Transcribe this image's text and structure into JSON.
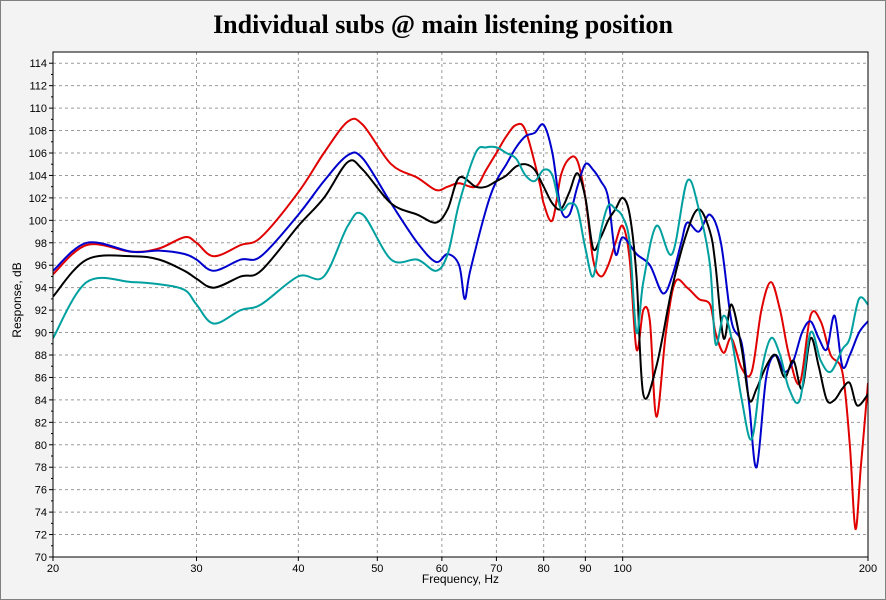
{
  "chart_data": {
    "type": "line",
    "title": "Individual subs @ main listening position",
    "xlabel": "Frequency, Hz",
    "ylabel": "Response, dB",
    "x_scale": "log",
    "xlim": [
      20,
      200
    ],
    "ylim": [
      70,
      115
    ],
    "x_ticks": [
      20,
      30,
      40,
      50,
      60,
      70,
      80,
      90,
      100,
      200
    ],
    "y_ticks": [
      70,
      72,
      74,
      76,
      78,
      80,
      82,
      84,
      86,
      88,
      90,
      92,
      94,
      96,
      98,
      100,
      102,
      104,
      106,
      108,
      110,
      112,
      114
    ],
    "grid": true,
    "legend": "none",
    "series": [
      {
        "color": "#e00000",
        "x": [
          20,
          22,
          25,
          27,
          29,
          30,
          31.5,
          34,
          36,
          40,
          43,
          46,
          48,
          52,
          56,
          59,
          61,
          63,
          66,
          68,
          70,
          72,
          74,
          76,
          79,
          80,
          82,
          84,
          86,
          88,
          90,
          92,
          94,
          96,
          98,
          100,
          102,
          104,
          106,
          108,
          110,
          113,
          116,
          120,
          124,
          128,
          130,
          133,
          136,
          140,
          144,
          148,
          152,
          156,
          160,
          165,
          170,
          175,
          180,
          186,
          190,
          193,
          196,
          200
        ],
        "y": [
          95.2,
          97.8,
          97.2,
          97.5,
          98.5,
          98.0,
          96.8,
          97.8,
          98.5,
          102.5,
          106.0,
          108.8,
          108.5,
          105.0,
          103.8,
          102.7,
          103.0,
          103.3,
          103.0,
          104.5,
          106.0,
          107.5,
          108.5,
          108.0,
          103.5,
          101.5,
          100.0,
          104.0,
          105.5,
          105.3,
          102.0,
          96.5,
          95.0,
          96.0,
          98.0,
          99.5,
          96.5,
          88.5,
          92.0,
          91.0,
          82.5,
          90.0,
          94.5,
          94.0,
          93.0,
          92.5,
          90.0,
          88.2,
          89.5,
          86.8,
          86.5,
          92.0,
          94.5,
          92.0,
          88.0,
          85.5,
          91.5,
          91.0,
          88.0,
          86.5,
          80.0,
          72.5,
          78.0,
          85.5
        ]
      },
      {
        "color": "#0000cc",
        "x": [
          20,
          22,
          25,
          27,
          29,
          30,
          31.5,
          34,
          36,
          40,
          43,
          46,
          48,
          52,
          56,
          59,
          61,
          63,
          64,
          65,
          68,
          70,
          72,
          74,
          76,
          78,
          80,
          82,
          84,
          86,
          88,
          90,
          92,
          94,
          96,
          98,
          100,
          104,
          108,
          112,
          115,
          118,
          120,
          124,
          128,
          132,
          136,
          140,
          143,
          146,
          150,
          154,
          158,
          162,
          166,
          170,
          174,
          178,
          182,
          186,
          190,
          195,
          200
        ],
        "y": [
          95.5,
          98.0,
          97.2,
          97.3,
          97.0,
          96.5,
          95.5,
          96.5,
          96.8,
          100.5,
          103.5,
          105.8,
          105.5,
          101.5,
          98.0,
          96.3,
          97.0,
          96.0,
          93.0,
          95.5,
          101.0,
          103.5,
          105.0,
          106.5,
          107.5,
          107.8,
          108.5,
          106.0,
          101.0,
          100.5,
          103.0,
          105.0,
          104.5,
          103.5,
          102.0,
          97.0,
          98.5,
          97.0,
          96.0,
          93.5,
          95.0,
          98.0,
          99.8,
          99.0,
          100.5,
          98.0,
          91.0,
          89.0,
          83.5,
          78.0,
          86.0,
          88.0,
          86.5,
          87.5,
          90.0,
          91.0,
          89.5,
          88.5,
          91.5,
          87.0,
          88.0,
          90.0,
          91.0
        ]
      },
      {
        "color": "#000000",
        "x": [
          20,
          22,
          25,
          27,
          29,
          30,
          31.5,
          34,
          36,
          40,
          43,
          46,
          48,
          52,
          56,
          59,
          61,
          63,
          66,
          68,
          70,
          72,
          74,
          76,
          78,
          80,
          82,
          84,
          86,
          88,
          90,
          92,
          94,
          96,
          98,
          100,
          102,
          104,
          106,
          110,
          115,
          120,
          124,
          128,
          130,
          133,
          136,
          140,
          143,
          146,
          150,
          154,
          158,
          162,
          166,
          170,
          174,
          178,
          182,
          186,
          190,
          194,
          200
        ],
        "y": [
          93.2,
          96.5,
          96.8,
          96.5,
          95.5,
          94.8,
          94.0,
          95.0,
          95.5,
          99.5,
          102.0,
          105.2,
          104.5,
          101.5,
          100.5,
          99.8,
          101.0,
          103.8,
          103.0,
          103.0,
          103.5,
          104.0,
          104.8,
          105.0,
          104.5,
          103.0,
          101.5,
          101.0,
          102.5,
          104.2,
          102.0,
          97.5,
          98.5,
          100.0,
          101.0,
          102.0,
          100.5,
          95.0,
          84.5,
          87.0,
          94.0,
          99.0,
          101.0,
          99.0,
          96.0,
          89.5,
          92.5,
          88.5,
          84.0,
          85.0,
          87.0,
          88.0,
          86.0,
          87.5,
          85.0,
          89.5,
          87.0,
          84.0,
          84.0,
          85.0,
          85.5,
          83.5,
          84.5
        ]
      },
      {
        "color": "#00a0a0",
        "x": [
          20,
          22,
          25,
          27,
          29,
          30,
          31.5,
          34,
          36,
          40,
          43,
          46,
          48,
          52,
          56,
          59,
          61,
          63,
          66,
          68,
          70,
          72,
          74,
          76,
          78,
          80,
          82,
          84,
          86,
          88,
          90,
          92,
          94,
          96,
          98,
          100,
          102,
          104,
          106,
          110,
          115,
          120,
          124,
          128,
          130,
          133,
          136,
          140,
          144,
          148,
          152,
          156,
          160,
          165,
          170,
          175,
          180,
          186,
          190,
          195,
          200
        ],
        "y": [
          89.5,
          94.5,
          94.5,
          94.3,
          93.8,
          92.5,
          90.8,
          92.0,
          92.5,
          95.0,
          95.0,
          99.5,
          100.5,
          96.5,
          96.5,
          95.5,
          97.0,
          101.5,
          106.0,
          106.5,
          106.5,
          106.0,
          105.5,
          104.0,
          103.5,
          104.5,
          104.0,
          101.0,
          101.5,
          101.0,
          97.5,
          95.0,
          99.0,
          101.3,
          101.0,
          100.3,
          98.0,
          90.0,
          94.5,
          99.5,
          97.0,
          103.5,
          101.0,
          96.0,
          89.0,
          91.5,
          89.5,
          84.0,
          80.5,
          86.5,
          89.5,
          88.0,
          85.0,
          84.0,
          90.0,
          87.5,
          86.5,
          88.5,
          89.5,
          93.0,
          92.5
        ]
      }
    ]
  }
}
